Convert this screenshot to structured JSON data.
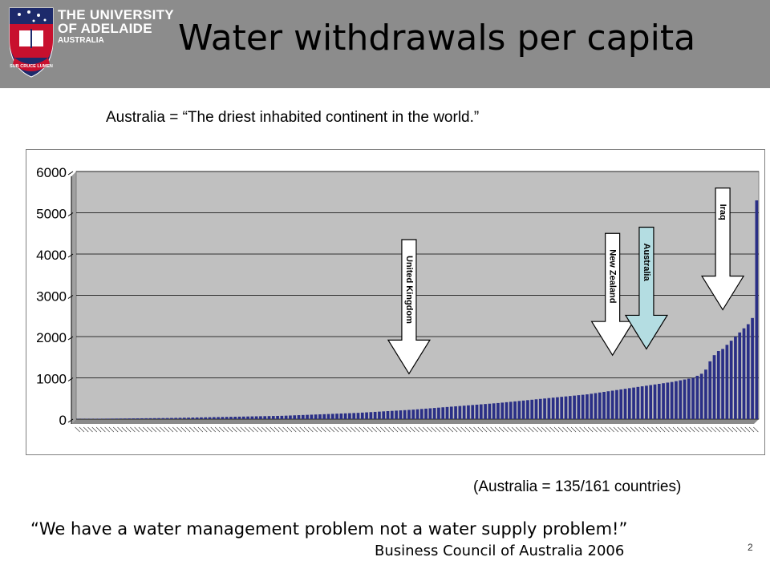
{
  "header": {
    "university_line1": "THE UNIVERSITY",
    "university_line2": "OF ADELAIDE",
    "university_line3": "AUSTRALIA",
    "motto": "SUB CRUCE LUMEN",
    "title": "Water withdrawals per capita",
    "bg_color": "#8c8c8c"
  },
  "subtitle": "Australia  =  “The driest inhabited continent in the world.”",
  "rank_note": "(Australia = 135/161 countries)",
  "quote": "“We have a water management problem not a water supply problem!”",
  "attribution": "Business Council of Australia 2006",
  "page_number": "2",
  "chart_data": {
    "type": "bar",
    "title": "",
    "xlabel": "",
    "ylabel": "",
    "ylim": [
      0,
      6000
    ],
    "yticks": [
      "0",
      "1000",
      "2000",
      "3000",
      "4000",
      "5000",
      "6000"
    ],
    "bar_count": 161,
    "bar_color": "#2a2f86",
    "plot_bg": "#c0c0c0",
    "grid": true,
    "values": [
      5,
      6,
      7,
      8,
      9,
      10,
      11,
      12,
      13,
      14,
      15,
      16,
      17,
      18,
      19,
      20,
      21,
      22,
      23,
      24,
      25,
      26,
      28,
      30,
      32,
      34,
      36,
      38,
      40,
      42,
      44,
      46,
      48,
      50,
      52,
      54,
      56,
      58,
      60,
      62,
      64,
      66,
      68,
      70,
      72,
      74,
      76,
      78,
      80,
      84,
      88,
      92,
      96,
      100,
      104,
      108,
      112,
      116,
      120,
      124,
      128,
      132,
      136,
      140,
      144,
      148,
      152,
      158,
      164,
      170,
      176,
      182,
      188,
      194,
      200,
      206,
      212,
      218,
      224,
      230,
      238,
      246,
      254,
      262,
      270,
      278,
      286,
      294,
      302,
      310,
      318,
      326,
      334,
      342,
      350,
      358,
      366,
      374,
      382,
      390,
      400,
      410,
      420,
      430,
      440,
      450,
      460,
      470,
      480,
      490,
      500,
      510,
      520,
      530,
      540,
      550,
      560,
      570,
      580,
      590,
      600,
      615,
      630,
      645,
      660,
      675,
      690,
      705,
      720,
      735,
      750,
      765,
      780,
      795,
      810,
      825,
      840,
      855,
      870,
      885,
      900,
      920,
      940,
      960,
      980,
      1000,
      1050,
      1100,
      1200,
      1400,
      1550,
      1650,
      1700,
      1800,
      1900,
      2000,
      2100,
      2200,
      2300,
      2450,
      5300
    ],
    "callouts": [
      {
        "label": "United Kingdom",
        "bar_index": 78,
        "fill": "#ffffff",
        "top_value": 4350,
        "tip_value": 1100
      },
      {
        "label": "New Zealand",
        "bar_index": 126,
        "fill": "#ffffff",
        "top_value": 4500,
        "tip_value": 1550
      },
      {
        "label": "Australia",
        "bar_index": 134,
        "fill": "#b4dde2",
        "top_value": 4650,
        "tip_value": 1700
      },
      {
        "label": "Iraq",
        "bar_index": 152,
        "fill": "#ffffff",
        "top_value": 5600,
        "tip_value": 2650
      }
    ]
  }
}
